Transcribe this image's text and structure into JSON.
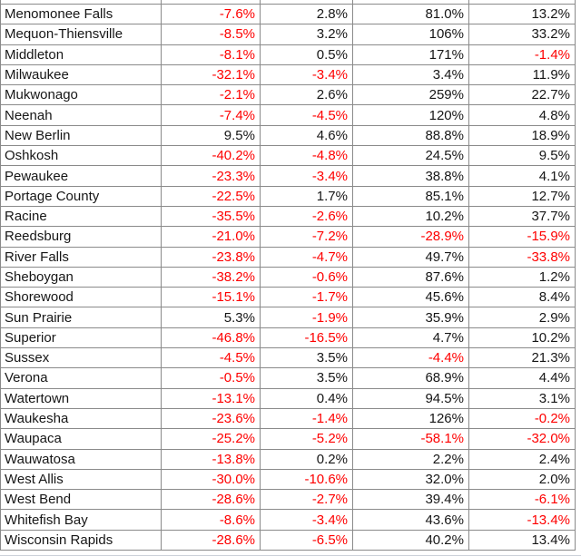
{
  "table": {
    "rows": [
      {
        "name": "Menomonee Falls",
        "values": [
          "-7.6%",
          "2.8%",
          "81.0%",
          "13.2%"
        ]
      },
      {
        "name": "Mequon-Thiensville",
        "values": [
          "-8.5%",
          "3.2%",
          "106%",
          "33.2%"
        ]
      },
      {
        "name": "Middleton",
        "values": [
          "-8.1%",
          "0.5%",
          "171%",
          "-1.4%"
        ]
      },
      {
        "name": "Milwaukee",
        "values": [
          "-32.1%",
          "-3.4%",
          "3.4%",
          "11.9%"
        ]
      },
      {
        "name": "Mukwonago",
        "values": [
          "-2.1%",
          "2.6%",
          "259%",
          "22.7%"
        ]
      },
      {
        "name": "Neenah",
        "values": [
          "-7.4%",
          "-4.5%",
          "120%",
          "4.8%"
        ]
      },
      {
        "name": "New Berlin",
        "values": [
          "9.5%",
          "4.6%",
          "88.8%",
          "18.9%"
        ]
      },
      {
        "name": "Oshkosh",
        "values": [
          "-40.2%",
          "-4.8%",
          "24.5%",
          "9.5%"
        ]
      },
      {
        "name": "Pewaukee",
        "values": [
          "-23.3%",
          "-3.4%",
          "38.8%",
          "4.1%"
        ]
      },
      {
        "name": "Portage County",
        "values": [
          "-22.5%",
          "1.7%",
          "85.1%",
          "12.7%"
        ]
      },
      {
        "name": "Racine",
        "values": [
          "-35.5%",
          "-2.6%",
          "10.2%",
          "37.7%"
        ]
      },
      {
        "name": "Reedsburg",
        "values": [
          "-21.0%",
          "-7.2%",
          "-28.9%",
          "-15.9%"
        ]
      },
      {
        "name": "River Falls",
        "values": [
          "-23.8%",
          "-4.7%",
          "49.7%",
          "-33.8%"
        ]
      },
      {
        "name": "Sheboygan",
        "values": [
          "-38.2%",
          "-0.6%",
          "87.6%",
          "1.2%"
        ]
      },
      {
        "name": "Shorewood",
        "values": [
          "-15.1%",
          "-1.7%",
          "45.6%",
          "8.4%"
        ]
      },
      {
        "name": "Sun Prairie",
        "values": [
          "5.3%",
          "-1.9%",
          "35.9%",
          "2.9%"
        ]
      },
      {
        "name": "Superior",
        "values": [
          "-46.8%",
          "-16.5%",
          "4.7%",
          "10.2%"
        ]
      },
      {
        "name": "Sussex",
        "values": [
          "-4.5%",
          "3.5%",
          "-4.4%",
          "21.3%"
        ]
      },
      {
        "name": "Verona",
        "values": [
          "-0.5%",
          "3.5%",
          "68.9%",
          "4.4%"
        ]
      },
      {
        "name": "Watertown",
        "values": [
          "-13.1%",
          "0.4%",
          "94.5%",
          "3.1%"
        ]
      },
      {
        "name": "Waukesha",
        "values": [
          "-23.6%",
          "-1.4%",
          "126%",
          "-0.2%"
        ]
      },
      {
        "name": "Waupaca",
        "values": [
          "-25.2%",
          "-5.2%",
          "-58.1%",
          "-32.0%"
        ]
      },
      {
        "name": "Wauwatosa",
        "values": [
          "-13.8%",
          "0.2%",
          "2.2%",
          "2.4%"
        ]
      },
      {
        "name": "West Allis",
        "values": [
          "-30.0%",
          "-10.6%",
          "32.0%",
          "2.0%"
        ]
      },
      {
        "name": "West Bend",
        "values": [
          "-28.6%",
          "-2.7%",
          "39.4%",
          "-6.1%"
        ]
      },
      {
        "name": "Whitefish Bay",
        "values": [
          "-8.6%",
          "-3.4%",
          "43.6%",
          "-13.4%"
        ]
      },
      {
        "name": "Wisconsin Rapids",
        "values": [
          "-28.6%",
          "-6.5%",
          "40.2%",
          "13.4%"
        ]
      }
    ]
  },
  "colors": {
    "negative_text": "#fe0000",
    "positive_text": "#161616",
    "gridline": "#8a8a8a",
    "faint_gridline": "#ccd1d9"
  }
}
